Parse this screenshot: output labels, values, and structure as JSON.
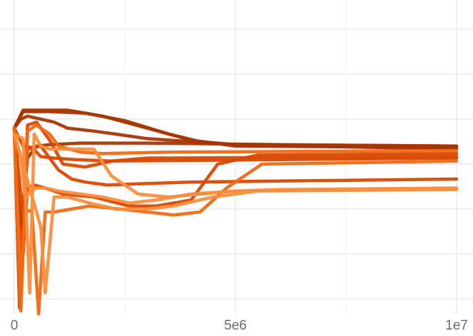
{
  "chart_data": {
    "type": "line",
    "title": "",
    "xlabel": "",
    "ylabel": "",
    "xlim": [
      -300000,
      10000000
    ],
    "ylim": [
      0,
      1
    ],
    "grid": true,
    "legend": "none",
    "x_ticks": [
      {
        "value": 0,
        "label": "0"
      },
      {
        "value": 5000000,
        "label": "5e6"
      },
      {
        "value": 10000000,
        "label": "1e7"
      }
    ],
    "x_minor_ticks": [
      2500000,
      7500000
    ],
    "y_gridlines": [
      0.05,
      0.2,
      0.35,
      0.5,
      0.65,
      0.8,
      0.95
    ],
    "series": [
      {
        "color": "#a63603",
        "points": [
          [
            0,
            0.62
          ],
          [
            200000,
            0.68
          ],
          [
            600000,
            0.68
          ],
          [
            1200000,
            0.68
          ],
          [
            2000000,
            0.66
          ],
          [
            3000000,
            0.62
          ],
          [
            4000000,
            0.58
          ],
          [
            5000000,
            0.56
          ],
          [
            10000000,
            0.555
          ]
        ]
      },
      {
        "color": "#a63603",
        "points": [
          [
            0,
            0.62
          ],
          [
            200000,
            0.675
          ],
          [
            800000,
            0.675
          ],
          [
            1600000,
            0.67
          ],
          [
            2500000,
            0.645
          ],
          [
            3500000,
            0.6
          ],
          [
            4200000,
            0.575
          ],
          [
            5000000,
            0.565
          ],
          [
            10000000,
            0.56
          ]
        ]
      },
      {
        "color": "#a63603",
        "points": [
          [
            0,
            0.62
          ],
          [
            150000,
            0.28
          ],
          [
            300000,
            0.52
          ],
          [
            500000,
            0.56
          ],
          [
            800000,
            0.565
          ],
          [
            1500000,
            0.57
          ],
          [
            3000000,
            0.57
          ],
          [
            6000000,
            0.565
          ],
          [
            10000000,
            0.56
          ]
        ]
      },
      {
        "color": "#a63603",
        "points": [
          [
            0,
            0.62
          ],
          [
            150000,
            0.65
          ],
          [
            300000,
            0.66
          ],
          [
            900000,
            0.64
          ],
          [
            1200000,
            0.62
          ],
          [
            1800000,
            0.61
          ],
          [
            2300000,
            0.6
          ],
          [
            3000000,
            0.585
          ],
          [
            5000000,
            0.565
          ],
          [
            10000000,
            0.55
          ]
        ]
      },
      {
        "color": "#d94801",
        "points": [
          [
            0,
            0.62
          ],
          [
            120000,
            0.02
          ],
          [
            300000,
            0.63
          ],
          [
            500000,
            0.64
          ],
          [
            800000,
            0.58
          ],
          [
            1100000,
            0.5
          ],
          [
            1600000,
            0.49
          ],
          [
            2200000,
            0.51
          ],
          [
            3000000,
            0.52
          ],
          [
            10000000,
            0.525
          ]
        ]
      },
      {
        "color": "#d94801",
        "points": [
          [
            0,
            0.62
          ],
          [
            200000,
            0.56
          ],
          [
            400000,
            0.555
          ],
          [
            600000,
            0.525
          ],
          [
            900000,
            0.52
          ],
          [
            1400000,
            0.515
          ],
          [
            2200000,
            0.51
          ],
          [
            10000000,
            0.52
          ]
        ]
      },
      {
        "color": "#d94801",
        "points": [
          [
            0,
            0.62
          ],
          [
            100000,
            0.3
          ],
          [
            200000,
            0.2
          ],
          [
            300000,
            0.42
          ],
          [
            450000,
            0.43
          ],
          [
            700000,
            0.42
          ],
          [
            1100000,
            0.4
          ],
          [
            1800000,
            0.39
          ],
          [
            2600000,
            0.36
          ],
          [
            3200000,
            0.36
          ],
          [
            4000000,
            0.38
          ],
          [
            4600000,
            0.5
          ],
          [
            5500000,
            0.53
          ],
          [
            10000000,
            0.535
          ]
        ]
      },
      {
        "color": "#d94801",
        "points": [
          [
            0,
            0.62
          ],
          [
            200000,
            0.32
          ],
          [
            300000,
            0.55
          ],
          [
            600000,
            0.56
          ],
          [
            1000000,
            0.48
          ],
          [
            1300000,
            0.45
          ],
          [
            1600000,
            0.44
          ],
          [
            2100000,
            0.43
          ],
          [
            3000000,
            0.435
          ],
          [
            4000000,
            0.44
          ],
          [
            10000000,
            0.45
          ]
        ]
      },
      {
        "color": "#f16913",
        "points": [
          [
            0,
            0.62
          ],
          [
            150000,
            0.01
          ],
          [
            300000,
            0.61
          ],
          [
            500000,
            0.63
          ],
          [
            800000,
            0.6
          ],
          [
            1000000,
            0.56
          ],
          [
            1500000,
            0.54
          ],
          [
            2000000,
            0.535
          ],
          [
            3500000,
            0.54
          ],
          [
            10000000,
            0.545
          ]
        ]
      },
      {
        "color": "#f16913",
        "points": [
          [
            0,
            0.6
          ],
          [
            150000,
            0.1
          ],
          [
            250000,
            0.35
          ],
          [
            400000,
            0.34
          ],
          [
            550000,
            -0.02
          ],
          [
            700000,
            0.34
          ],
          [
            900000,
            0.34
          ],
          [
            1300000,
            0.35
          ],
          [
            1700000,
            0.36
          ],
          [
            2400000,
            0.35
          ],
          [
            3000000,
            0.34
          ],
          [
            3600000,
            0.33
          ],
          [
            4200000,
            0.34
          ],
          [
            4800000,
            0.42
          ],
          [
            5600000,
            0.5
          ],
          [
            10000000,
            0.51
          ]
        ]
      },
      {
        "color": "#fd8d3c",
        "points": [
          [
            0,
            0.6
          ],
          [
            200000,
            0.585
          ],
          [
            350000,
            0.07
          ],
          [
            450000,
            0.6
          ],
          [
            600000,
            0.56
          ],
          [
            800000,
            0.55
          ],
          [
            1200000,
            0.55
          ],
          [
            1800000,
            0.55
          ],
          [
            2200000,
            0.46
          ],
          [
            2800000,
            0.4
          ],
          [
            3500000,
            0.39
          ],
          [
            4200000,
            0.4
          ],
          [
            5000000,
            0.41
          ],
          [
            6000000,
            0.415
          ],
          [
            10000000,
            0.42
          ]
        ]
      },
      {
        "color": "#fd8d3c",
        "points": [
          [
            0,
            0.6
          ],
          [
            150000,
            0.52
          ],
          [
            250000,
            0.38
          ],
          [
            350000,
            0.41
          ],
          [
            500000,
            0.42
          ],
          [
            700000,
            0.42
          ],
          [
            1000000,
            0.41
          ],
          [
            1500000,
            0.4
          ],
          [
            2000000,
            0.39
          ],
          [
            2600000,
            0.37
          ],
          [
            3200000,
            0.38
          ],
          [
            4000000,
            0.4
          ],
          [
            5000000,
            0.41
          ],
          [
            10000000,
            0.415
          ]
        ]
      },
      {
        "color": "#fd8d3c",
        "points": [
          [
            0,
            0.6
          ],
          [
            600000,
            0.29
          ],
          [
            700000,
            0.07
          ],
          [
            900000,
            0.39
          ],
          [
            1200000,
            0.39
          ],
          [
            1700000,
            0.37
          ],
          [
            2300000,
            0.35
          ],
          [
            3000000,
            0.35
          ],
          [
            3600000,
            0.36
          ],
          [
            4500000,
            0.39
          ],
          [
            5500000,
            0.41
          ],
          [
            10000000,
            0.42
          ]
        ]
      }
    ]
  }
}
